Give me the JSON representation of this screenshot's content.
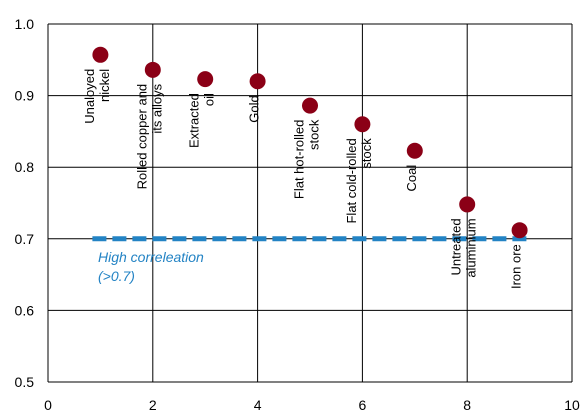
{
  "chart_data": {
    "type": "scatter",
    "xlim": [
      0,
      10
    ],
    "ylim": [
      0.5,
      1.0
    ],
    "x_ticks": [
      0,
      2,
      4,
      6,
      8,
      10
    ],
    "y_ticks": [
      0.5,
      0.6,
      0.7,
      0.8,
      0.9,
      1.0
    ],
    "x_tick_labels": [
      "0",
      "2",
      "4",
      "6",
      "8",
      "10"
    ],
    "y_tick_labels": [
      "0.5",
      "0.6",
      "0.7",
      "0.8",
      "0.9",
      "1.0"
    ],
    "grid": true,
    "point_color": "#8b0016",
    "points": [
      {
        "x": 1,
        "y": 0.957,
        "label": [
          "Unaloyed",
          "nickel"
        ]
      },
      {
        "x": 2,
        "y": 0.936,
        "label": [
          "Rolled copper and",
          "its alloys"
        ]
      },
      {
        "x": 3,
        "y": 0.923,
        "label": [
          "Extracted",
          "oil"
        ]
      },
      {
        "x": 4,
        "y": 0.92,
        "label": [
          "Gold"
        ]
      },
      {
        "x": 5,
        "y": 0.886,
        "label": [
          "Flat hot-rolled",
          "stock"
        ]
      },
      {
        "x": 6,
        "y": 0.86,
        "label": [
          "Flat cold-rolled",
          "stock"
        ]
      },
      {
        "x": 7,
        "y": 0.823,
        "label": [
          "Coal"
        ]
      },
      {
        "x": 8,
        "y": 0.748,
        "label": [
          "Untreated",
          "aluminium"
        ]
      },
      {
        "x": 9,
        "y": 0.712,
        "label": [
          "Iron ore"
        ]
      }
    ],
    "threshold": {
      "y": 0.7,
      "x_start": 1,
      "x_end": 9,
      "color": "#2383c4",
      "label": [
        "High correleation",
        "(>0.7)"
      ]
    }
  }
}
